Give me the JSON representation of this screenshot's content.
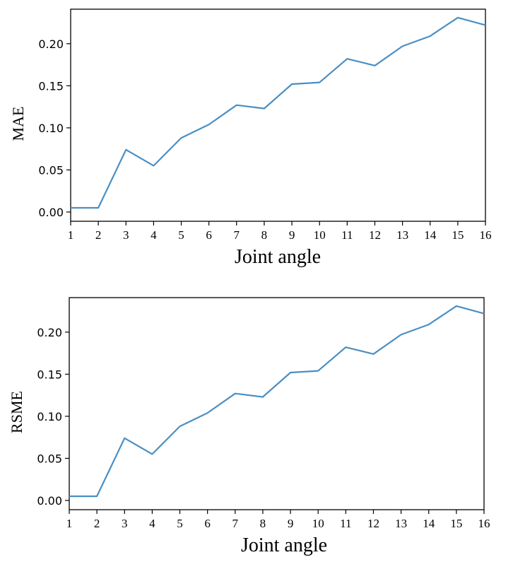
{
  "chart_data": [
    {
      "type": "line",
      "xlabel": "Joint angle",
      "ylabel": "MAE",
      "x": [
        1,
        2,
        3,
        4,
        5,
        6,
        7,
        8,
        9,
        10,
        11,
        12,
        13,
        14,
        15,
        16
      ],
      "series": [
        {
          "values": [
            0.005,
            0.005,
            0.074,
            0.055,
            0.088,
            0.104,
            0.127,
            0.123,
            0.152,
            0.154,
            0.182,
            0.174,
            0.197,
            0.209,
            0.231,
            0.222
          ]
        }
      ],
      "xlim": [
        1,
        16
      ],
      "ylim": [
        -0.011,
        0.241
      ],
      "yticks": [
        "0.00",
        "0.05",
        "0.10",
        "0.15",
        "0.20"
      ],
      "ytick_values": [
        0,
        0.05,
        0.1,
        0.15,
        0.2
      ],
      "xticks": [
        "1",
        "2",
        "3",
        "4",
        "5",
        "6",
        "7",
        "8",
        "9",
        "10",
        "11",
        "12",
        "13",
        "14",
        "15",
        "16"
      ],
      "grid": false,
      "line_color": "#4a8fc4"
    },
    {
      "type": "line",
      "xlabel": "Joint angle",
      "ylabel": "RSME",
      "x": [
        1,
        2,
        3,
        4,
        5,
        6,
        7,
        8,
        9,
        10,
        11,
        12,
        13,
        14,
        15,
        16
      ],
      "series": [
        {
          "values": [
            0.005,
            0.005,
            0.074,
            0.055,
            0.088,
            0.104,
            0.127,
            0.123,
            0.152,
            0.154,
            0.182,
            0.174,
            0.197,
            0.209,
            0.231,
            0.222
          ]
        }
      ],
      "xlim": [
        1,
        16
      ],
      "ylim": [
        -0.011,
        0.241
      ],
      "yticks": [
        "0.00",
        "0.05",
        "0.10",
        "0.15",
        "0.20"
      ],
      "ytick_values": [
        0,
        0.05,
        0.1,
        0.15,
        0.2
      ],
      "xticks": [
        "1",
        "2",
        "3",
        "4",
        "5",
        "6",
        "7",
        "8",
        "9",
        "10",
        "11",
        "12",
        "13",
        "14",
        "15",
        "16"
      ],
      "grid": false,
      "line_color": "#4a8fc4"
    }
  ]
}
